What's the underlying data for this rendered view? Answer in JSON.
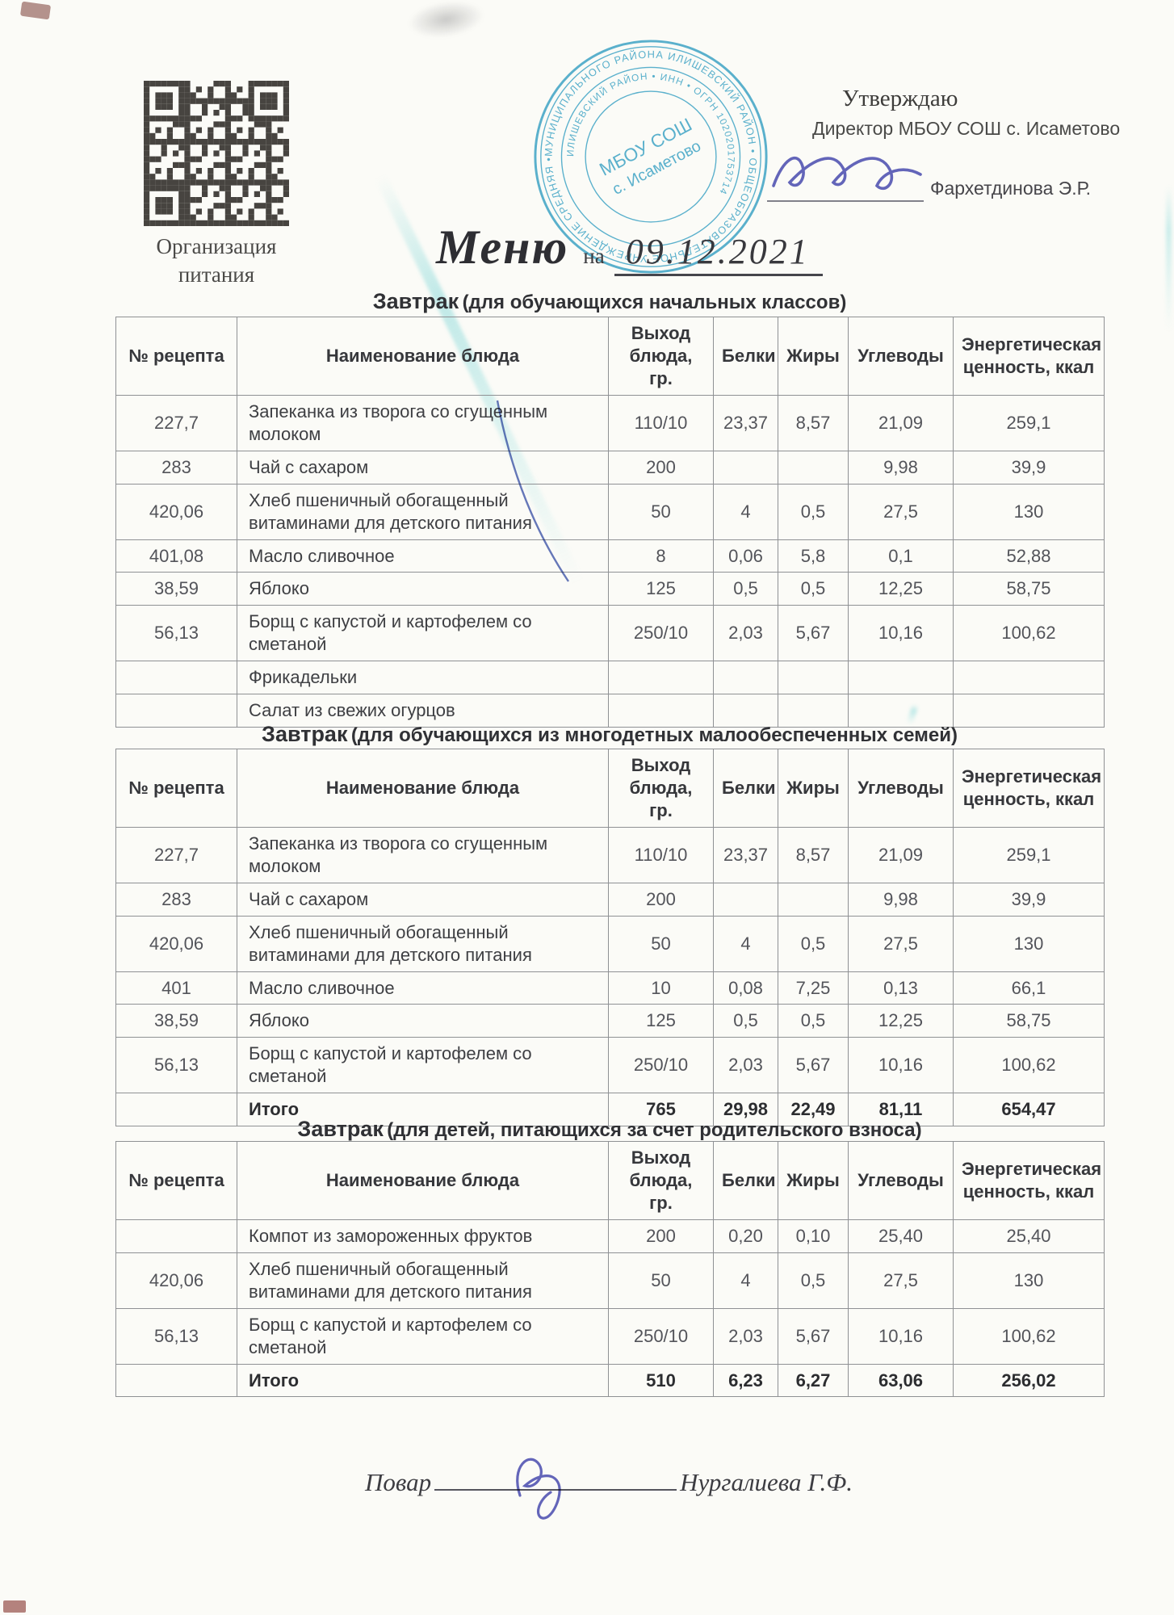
{
  "page": {
    "qr_caption": {
      "line1": "Организация",
      "line2": "питания"
    },
    "approve": {
      "approve_word": "Утверждаю",
      "director_line": "Директор МБОУ СОШ с. Исаметово",
      "signer_name": "Фархетдинова Э.Р."
    },
    "title": {
      "word": "Меню",
      "preposition": "на",
      "date": "09.12.2021"
    },
    "stamp": {
      "ring_text_outer": "МУНИЦИПАЛЬНОГО РАЙОНА ИЛИШЕВСКИЙ РАЙОН • ОБЩЕОБРАЗОВАТЕЛЬНОЕ УЧРЕЖДЕНИЕ СРЕДНЯЯ •",
      "ring_text_inner": "ИЛИШЕВСКИЙ РАЙОН • ИНН • ОГРН 1020201753714",
      "center_line1": "МБОУ СОШ",
      "center_line2": "с. Исаметово",
      "color": "#2d9ec7"
    },
    "footer": {
      "cook_label": "Повар",
      "cook_name": "Нургалиева Г.Ф."
    }
  },
  "tables": [
    {
      "title_main": "Завтрак",
      "title_sub": "(для обучающихся начальных классов)",
      "headers": [
        "№ рецепта",
        "Наименование блюда",
        "Выход блюда, гр.",
        "Белки",
        "Жиры",
        "Углеводы",
        "Энергетическая ценность, ккал"
      ],
      "rows": [
        {
          "cells": [
            "227,7",
            "Запеканка из творога со сгущенным молоком",
            "110/10",
            "23,37",
            "8,57",
            "21,09",
            "259,1"
          ],
          "total": false
        },
        {
          "cells": [
            "283",
            "Чай с сахаром",
            "200",
            "",
            "",
            "9,98",
            "39,9"
          ],
          "total": false
        },
        {
          "cells": [
            "420,06",
            "Хлеб пшеничный обогащенный витаминами для детского питания",
            "50",
            "4",
            "0,5",
            "27,5",
            "130"
          ],
          "total": false
        },
        {
          "cells": [
            "401,08",
            "Масло сливочное",
            "8",
            "0,06",
            "5,8",
            "0,1",
            "52,88"
          ],
          "total": false
        },
        {
          "cells": [
            "38,59",
            "Яблоко",
            "125",
            "0,5",
            "0,5",
            "12,25",
            "58,75"
          ],
          "total": false
        },
        {
          "cells": [
            "56,13",
            "Борщ с капустой и картофелем со сметаной",
            "250/10",
            "2,03",
            "5,67",
            "10,16",
            "100,62"
          ],
          "total": false
        },
        {
          "cells": [
            "",
            "Фрикадельки",
            "",
            "",
            "",
            "",
            ""
          ],
          "total": false
        },
        {
          "cells": [
            "",
            "Салат из свежих огурцов",
            "",
            "",
            "",
            "",
            ""
          ],
          "total": false
        }
      ]
    },
    {
      "title_main": "Завтрак",
      "title_sub": "(для обучающихся из многодетных малообеспеченных семей)",
      "headers": [
        "№ рецепта",
        "Наименование блюда",
        "Выход блюда, гр.",
        "Белки",
        "Жиры",
        "Углеводы",
        "Энергетическая ценность, ккал"
      ],
      "rows": [
        {
          "cells": [
            "227,7",
            "Запеканка из творога со сгущенным молоком",
            "110/10",
            "23,37",
            "8,57",
            "21,09",
            "259,1"
          ],
          "total": false
        },
        {
          "cells": [
            "283",
            "Чай с сахаром",
            "200",
            "",
            "",
            "9,98",
            "39,9"
          ],
          "total": false
        },
        {
          "cells": [
            "420,06",
            "Хлеб пшеничный обогащенный витаминами для детского питания",
            "50",
            "4",
            "0,5",
            "27,5",
            "130"
          ],
          "total": false
        },
        {
          "cells": [
            "401",
            "Масло сливочное",
            "10",
            "0,08",
            "7,25",
            "0,13",
            "66,1"
          ],
          "total": false
        },
        {
          "cells": [
            "38,59",
            "Яблоко",
            "125",
            "0,5",
            "0,5",
            "12,25",
            "58,75"
          ],
          "total": false
        },
        {
          "cells": [
            "56,13",
            "Борщ с капустой и картофелем со сметаной",
            "250/10",
            "2,03",
            "5,67",
            "10,16",
            "100,62"
          ],
          "total": false
        },
        {
          "cells": [
            "",
            "Итого",
            "765",
            "29,98",
            "22,49",
            "81,11",
            "654,47"
          ],
          "total": true
        }
      ]
    },
    {
      "title_main": "Завтрак",
      "title_sub": "(для детей, питающихся за счет родительского взноса)",
      "headers": [
        "№ рецепта",
        "Наименование блюда",
        "Выход блюда, гр.",
        "Белки",
        "Жиры",
        "Углеводы",
        "Энергетическая ценность, ккал"
      ],
      "rows": [
        {
          "cells": [
            "",
            "Компот из замороженных фруктов",
            "200",
            "0,20",
            "0,10",
            "25,40",
            "25,40"
          ],
          "total": false
        },
        {
          "cells": [
            "420,06",
            "Хлеб пшеничный обогащенный витаминами для детского питания",
            "50",
            "4",
            "0,5",
            "27,5",
            "130"
          ],
          "total": false
        },
        {
          "cells": [
            "56,13",
            "Борщ с капустой и картофелем со сметаной",
            "250/10",
            "2,03",
            "5,67",
            "10,16",
            "100,62"
          ],
          "total": false
        },
        {
          "cells": [
            "",
            "Итого",
            "510",
            "6,23",
            "6,27",
            "63,06",
            "256,02"
          ],
          "total": true
        }
      ]
    }
  ]
}
